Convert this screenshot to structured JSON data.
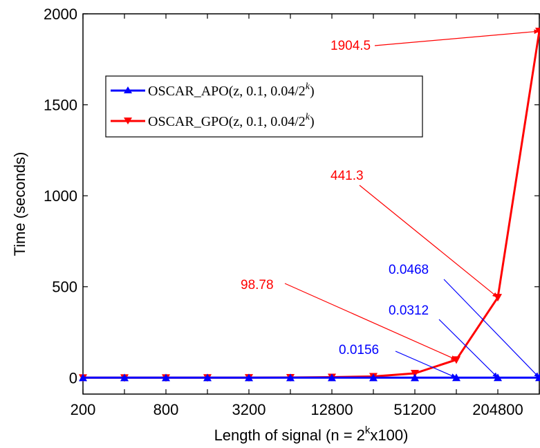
{
  "chart_data": {
    "type": "line",
    "title": "",
    "xlabel": "Length of signal (n = 2^kx100)",
    "xlabel_parts": {
      "before": "Length of signal (n = 2",
      "sup": "k",
      "after": "x100)"
    },
    "ylabel": "Time (seconds)",
    "x_ticks": [
      "200",
      "800",
      "3200",
      "12800",
      "51200",
      "204800"
    ],
    "y_ticks": [
      "0",
      "500",
      "1000",
      "1500",
      "2000"
    ],
    "xlim": [
      1,
      12
    ],
    "ylim": [
      -90,
      2000
    ],
    "y_tick_values": [
      0,
      500,
      1000,
      1500,
      2000
    ],
    "x_tick_positions": [
      1,
      3,
      5,
      7,
      9,
      11
    ],
    "x": [
      1,
      2,
      3,
      4,
      5,
      6,
      7,
      8,
      9,
      10,
      11,
      12
    ],
    "series": [
      {
        "name": "OSCAR_APO(z, 0.1, 0.04/2^k)",
        "legend": {
          "name": "OSCAR_APO",
          "args": "(z, 0.1, 0.04/2",
          "sup": "k",
          "close": ")"
        },
        "color": "#0000ff",
        "marker": "triangle-up",
        "values": [
          0,
          0,
          0,
          0,
          0,
          0,
          0,
          0,
          0,
          0.0156,
          0.0312,
          0.0468
        ]
      },
      {
        "name": "OSCAR_GPO(z, 0.1, 0.04/2^k)",
        "legend": {
          "name": "OSCAR_GPO",
          "args": "(z, 0.1, 0.04/2",
          "sup": "k",
          "close": ")"
        },
        "color": "#ff0000",
        "marker": "triangle-down",
        "values": [
          0,
          0,
          0,
          0.2,
          0.5,
          1.2,
          3,
          7,
          24,
          98.78,
          441.3,
          1904.5
        ]
      }
    ],
    "annotations": [
      {
        "text": "1904.5",
        "color": "#ff0000",
        "target": [
          12,
          1904.5
        ]
      },
      {
        "text": "441.3",
        "color": "#ff0000",
        "target": [
          11,
          441.3
        ]
      },
      {
        "text": "98.78",
        "color": "#ff0000",
        "target": [
          10,
          98.78
        ]
      },
      {
        "text": "0.0468",
        "color": "#0000ff",
        "target": [
          12,
          0.0468
        ]
      },
      {
        "text": "0.0312",
        "color": "#0000ff",
        "target": [
          11,
          0.0312
        ]
      },
      {
        "text": "0.0156",
        "color": "#0000ff",
        "target": [
          10,
          0.0156
        ]
      }
    ],
    "legend_position": "upper-left",
    "grid": false
  }
}
